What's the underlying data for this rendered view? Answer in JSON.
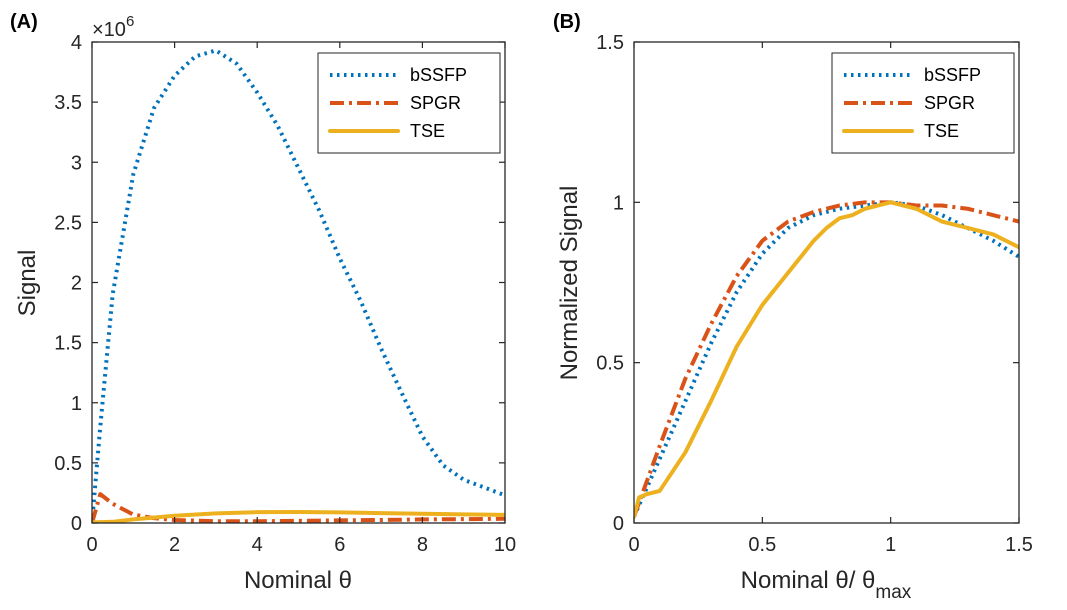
{
  "chart_data": [
    {
      "panel_label": "(A)",
      "type": "line",
      "xlabel": "Nominal θ",
      "ylabel": "Signal",
      "y_exponent_label": "×10",
      "y_exponent_power": "6",
      "xlim": [
        0,
        10
      ],
      "ylim": [
        0,
        4
      ],
      "xticks": [
        0,
        2,
        4,
        6,
        8,
        10
      ],
      "xtick_labels": [
        "0",
        "2",
        "4",
        "6",
        "8",
        "10"
      ],
      "yticks": [
        0,
        0.5,
        1,
        1.5,
        2,
        2.5,
        3,
        3.5,
        4
      ],
      "ytick_labels": [
        "0",
        "0.5",
        "1",
        "1.5",
        "2",
        "2.5",
        "3",
        "3.5",
        "4"
      ],
      "legend_position": "top-right",
      "series": [
        {
          "name": "bSSFP",
          "style": "dotted",
          "color": "#0072BD",
          "x": [
            0,
            0.2,
            0.5,
            1,
            1.5,
            2,
            2.5,
            3,
            3.5,
            4,
            4.5,
            5,
            5.5,
            6,
            6.5,
            7,
            7.5,
            8,
            8.5,
            9,
            10
          ],
          "y": [
            0,
            0.8,
            1.9,
            2.9,
            3.45,
            3.72,
            3.88,
            3.93,
            3.82,
            3.58,
            3.3,
            2.95,
            2.6,
            2.2,
            1.85,
            1.45,
            1.08,
            0.72,
            0.48,
            0.36,
            0.23
          ]
        },
        {
          "name": "SPGR",
          "style": "dashdot",
          "color": "#D95319",
          "x": [
            0,
            0.2,
            0.5,
            1,
            1.5,
            2,
            3,
            4,
            5,
            6,
            7,
            8,
            9,
            10
          ],
          "y": [
            0,
            0.24,
            0.16,
            0.07,
            0.04,
            0.025,
            0.015,
            0.015,
            0.018,
            0.022,
            0.025,
            0.03,
            0.032,
            0.035
          ]
        },
        {
          "name": "TSE",
          "style": "solid",
          "color": "#EDB120",
          "x": [
            0,
            0.5,
            1,
            2,
            3,
            4,
            5,
            6,
            7,
            8,
            9,
            10
          ],
          "y": [
            0.005,
            0.01,
            0.03,
            0.06,
            0.08,
            0.09,
            0.092,
            0.088,
            0.082,
            0.077,
            0.072,
            0.068
          ]
        }
      ]
    },
    {
      "panel_label": "(B)",
      "type": "line",
      "xlabel": "Nominal θ/ θ",
      "xlabel_subscript": "max",
      "ylabel": "Normalized Signal",
      "xlim": [
        0,
        1.5
      ],
      "ylim": [
        0,
        1.5
      ],
      "xticks": [
        0,
        0.5,
        1,
        1.5
      ],
      "xtick_labels": [
        "0",
        "0.5",
        "1",
        "1.5"
      ],
      "yticks": [
        0,
        0.5,
        1,
        1.5
      ],
      "ytick_labels": [
        "0",
        "0.5",
        "1",
        "1.5"
      ],
      "legend_position": "top-right",
      "series": [
        {
          "name": "bSSFP",
          "style": "dotted",
          "color": "#0072BD",
          "x": [
            0,
            0.1,
            0.2,
            0.3,
            0.4,
            0.5,
            0.6,
            0.7,
            0.8,
            0.9,
            1.0,
            1.1,
            1.2,
            1.3,
            1.4,
            1.5
          ],
          "y": [
            0.02,
            0.2,
            0.38,
            0.56,
            0.72,
            0.84,
            0.92,
            0.96,
            0.98,
            0.99,
            1.0,
            0.99,
            0.96,
            0.92,
            0.88,
            0.83
          ]
        },
        {
          "name": "SPGR",
          "style": "dashdot",
          "color": "#D95319",
          "x": [
            0,
            0.1,
            0.2,
            0.3,
            0.4,
            0.5,
            0.6,
            0.7,
            0.8,
            0.9,
            1.0,
            1.1,
            1.2,
            1.3,
            1.4,
            1.5
          ],
          "y": [
            0.02,
            0.24,
            0.45,
            0.62,
            0.77,
            0.88,
            0.94,
            0.97,
            0.99,
            1.0,
            1.0,
            0.99,
            0.99,
            0.98,
            0.96,
            0.94
          ]
        },
        {
          "name": "TSE",
          "style": "solid",
          "color": "#EDB120",
          "x": [
            0,
            0.02,
            0.05,
            0.1,
            0.15,
            0.2,
            0.3,
            0.4,
            0.5,
            0.6,
            0.7,
            0.75,
            0.8,
            0.85,
            0.9,
            0.95,
            1.0,
            1.1,
            1.2,
            1.3,
            1.4,
            1.5
          ],
          "y": [
            0.02,
            0.08,
            0.09,
            0.1,
            0.16,
            0.22,
            0.38,
            0.55,
            0.68,
            0.78,
            0.88,
            0.92,
            0.95,
            0.96,
            0.98,
            0.99,
            1.0,
            0.98,
            0.94,
            0.92,
            0.9,
            0.86
          ]
        }
      ]
    }
  ]
}
